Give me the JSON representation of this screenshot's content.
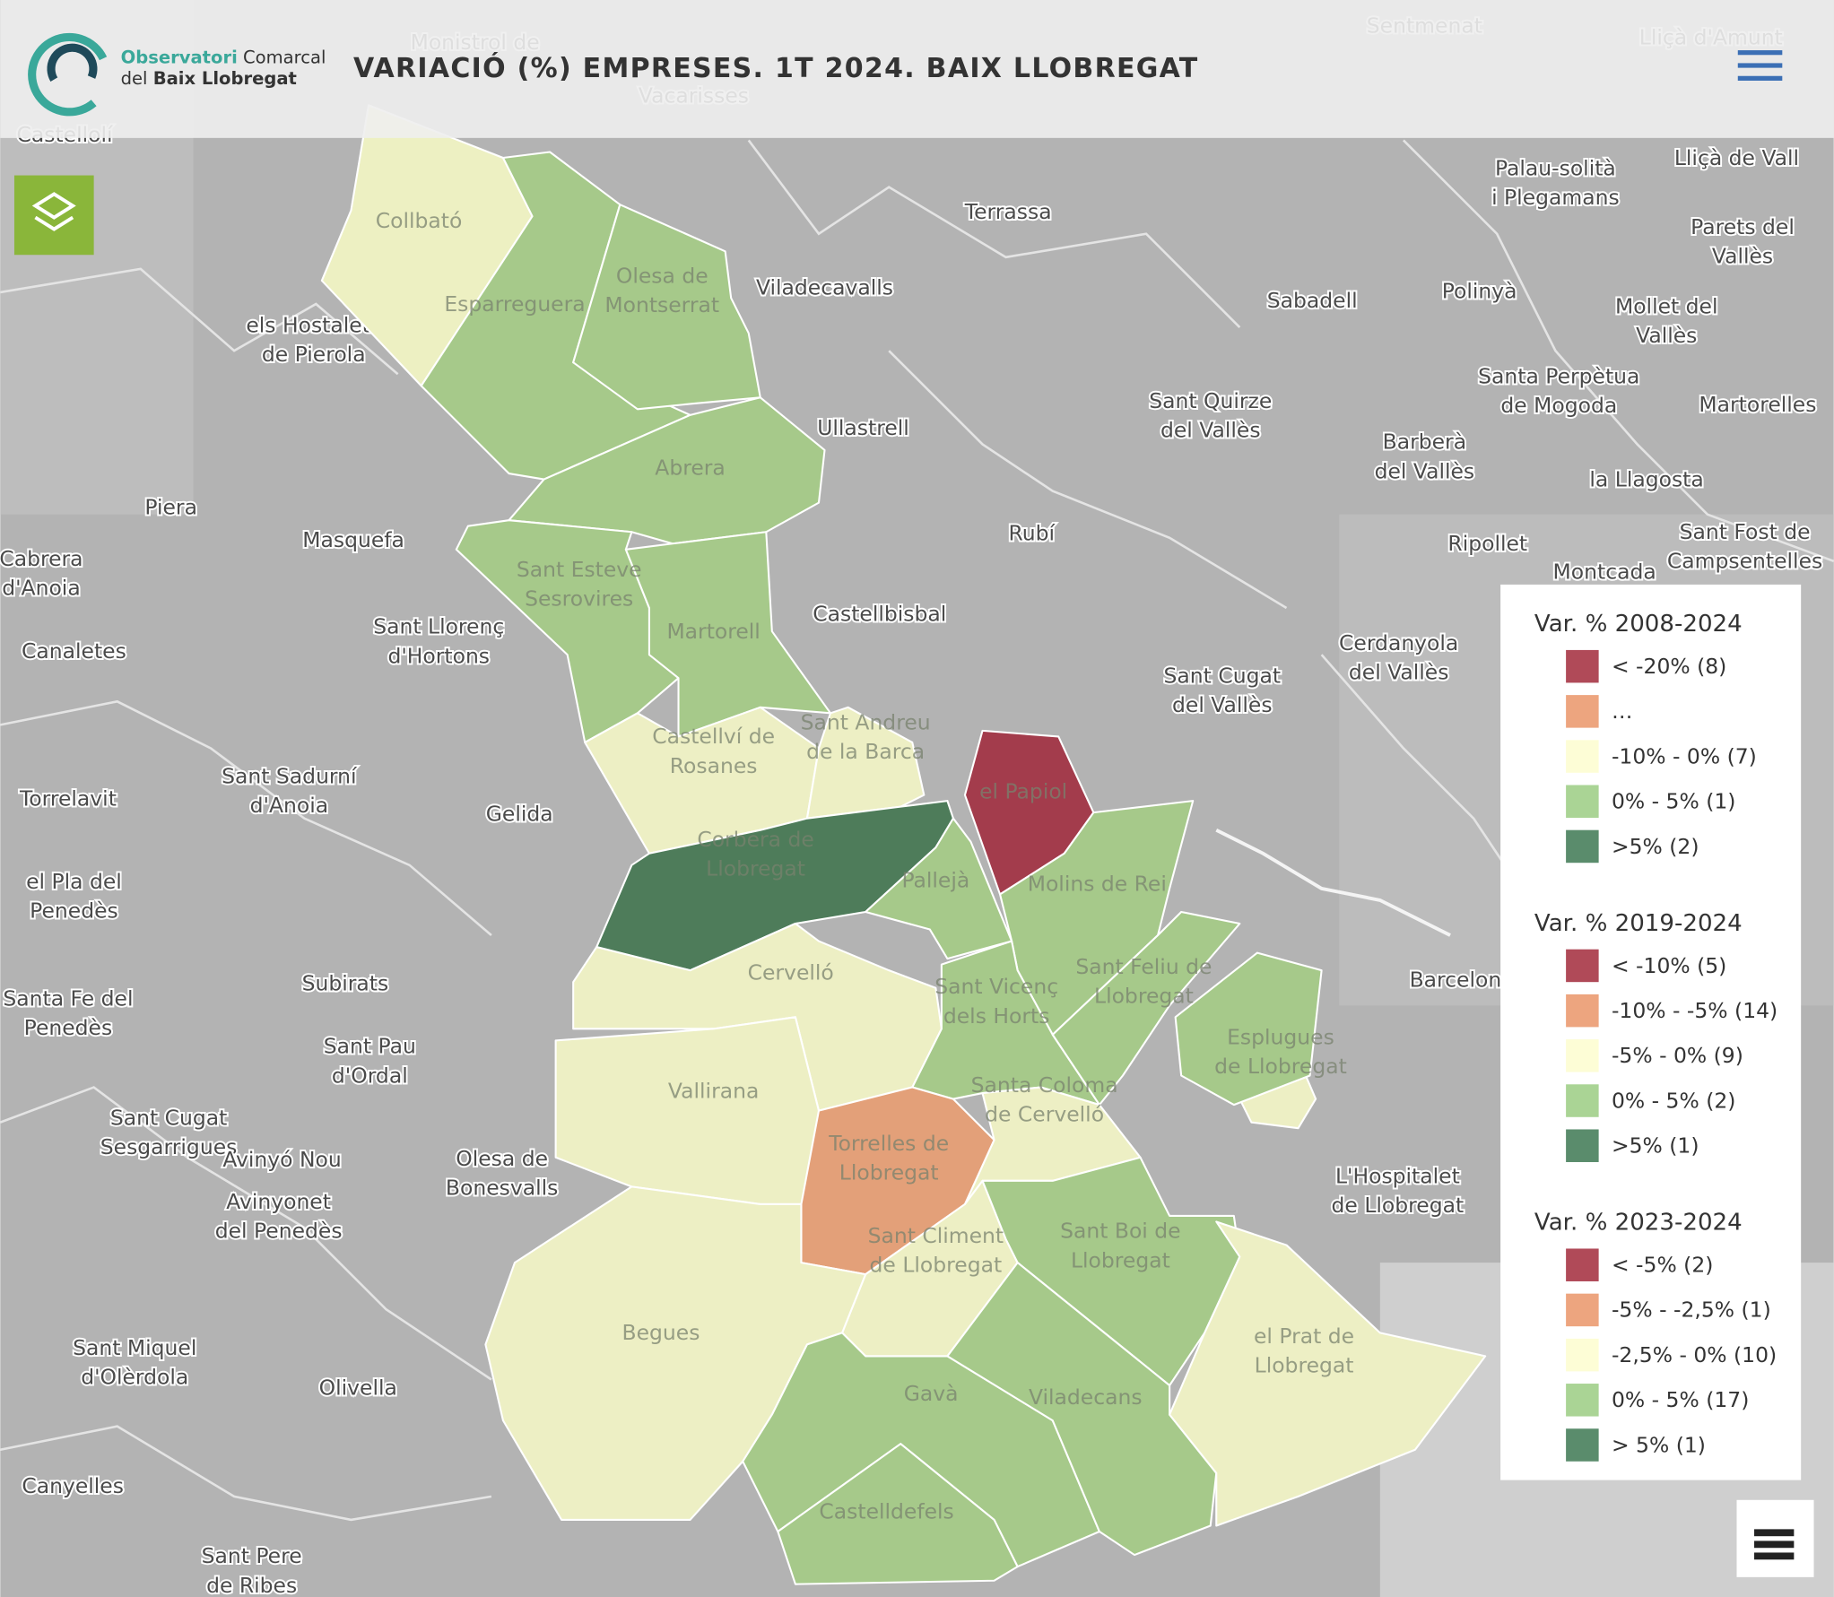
{
  "header": {
    "logo": {
      "line1": [
        "Observatori",
        "Comarcal"
      ],
      "line2": [
        "del",
        "Baix Llobregat"
      ]
    },
    "title": "VARIACIÓ (%) EMPRESES. 1T 2024. BAIX LLOBREGAT"
  },
  "municipalities": [
    {
      "name": [
        "Collbató"
      ],
      "color": "#edf0c2"
    },
    {
      "name": [
        "Esparreguera"
      ],
      "color": "#a6c98a"
    },
    {
      "name": [
        "Olesa de",
        "Montserrat"
      ],
      "color": "#a6c98a"
    },
    {
      "name": [
        "Abrera"
      ],
      "color": "#a6c98a"
    },
    {
      "name": [
        "Sant Esteve",
        "Sesrovires"
      ],
      "color": "#a6c98a"
    },
    {
      "name": [
        "Martorell"
      ],
      "color": "#a6c98a"
    },
    {
      "name": [
        "Castellví de",
        "Rosanes"
      ],
      "color": "#edefc4"
    },
    {
      "name": [
        "Sant Andreu",
        "de la Barca"
      ],
      "color": "#edefc4"
    },
    {
      "name": [
        "Corbera de",
        "Llobregat"
      ],
      "color": "#4e7c5a"
    },
    {
      "name": [
        "el Papiol"
      ],
      "color": "#a33c4c"
    },
    {
      "name": [
        "Pallejà"
      ],
      "color": "#a6c98a"
    },
    {
      "name": [
        "Molins de Rei"
      ],
      "color": "#a6c98a"
    },
    {
      "name": [
        "Cervelló"
      ],
      "color": "#edefc4"
    },
    {
      "name": [
        "Sant Vicenç",
        "dels Horts"
      ],
      "color": "#a6c98a"
    },
    {
      "name": [
        "Sant Feliu de",
        "Llobregat"
      ],
      "color": "#a6c98a"
    },
    {
      "name": [
        "Esplugues",
        "de Llobregat"
      ],
      "color": "#a6c98a"
    },
    {
      "name": [
        "Santa Coloma",
        "de Cervelló"
      ],
      "color": "#edefc4"
    },
    {
      "name": [
        "Vallirana"
      ],
      "color": "#edefc4"
    },
    {
      "name": [
        "Torrelles de",
        "Llobregat"
      ],
      "color": "#e3a079"
    },
    {
      "name": [
        "Sant Climent",
        "de Llobregat"
      ],
      "color": "#edefc4"
    },
    {
      "name": [
        "Sant Boi de",
        "Llobregat"
      ],
      "color": "#a6c98a"
    },
    {
      "name": [
        "Begues"
      ],
      "color": "#edefc4"
    },
    {
      "name": [
        "Gavà"
      ],
      "color": "#a6c98a"
    },
    {
      "name": [
        "Viladecans"
      ],
      "color": "#a6c98a"
    },
    {
      "name": [
        "el Prat de",
        "Llobregat"
      ],
      "color": "#edefc4"
    },
    {
      "name": [
        "Castelldefels"
      ],
      "color": "#a6c98a"
    }
  ],
  "places": [
    [
      "Terrassa"
    ],
    [
      "Viladecavalls"
    ],
    [
      "Sabadell"
    ],
    [
      "Polinyà"
    ],
    [
      "Palau-solità",
      "i Plegamans"
    ],
    [
      "Lliçà de Vall"
    ],
    [
      "Parets del",
      "Vallès"
    ],
    [
      "Mollet del",
      "Vallès"
    ],
    [
      "Santa Perpètua",
      "de Mogoda"
    ],
    [
      "Martorelles"
    ],
    [
      "Ullastrell"
    ],
    [
      "Sant Quirze",
      "del Vallès"
    ],
    [
      "Barberà",
      "del Vallès"
    ],
    [
      "la Llagosta"
    ],
    [
      "Rubí"
    ],
    [
      "Ripollet"
    ],
    [
      "Sant Fost de",
      "Campsentelles"
    ],
    [
      "Montcada"
    ],
    [
      "Castellbisbal"
    ],
    [
      "Cerdanyola",
      "del Vallès"
    ],
    [
      "Sant Cugat",
      "del Vallès"
    ],
    [
      "els Hostalets",
      "de Pierola"
    ],
    [
      "Masquefa"
    ],
    [
      "Sant Llorenç",
      "d'Hortons"
    ],
    [
      "Cabrera",
      "d'Anoia"
    ],
    [
      "Canaletes"
    ],
    [
      "Torrelavit"
    ],
    [
      "Sant Sadurní",
      "d'Anoia"
    ],
    [
      "Gelida"
    ],
    [
      "el Pla del",
      "Penedès"
    ],
    [
      "Subirats"
    ],
    [
      "Santa Fe del",
      "Penedès"
    ],
    [
      "Sant Pau",
      "d'Ordal"
    ],
    [
      "Sant Cugat",
      "Sesgarrigues"
    ],
    [
      "Avinyó Nou"
    ],
    [
      "Avinyonet",
      "del Penedès"
    ],
    [
      "Olesa de",
      "Bonesvalls"
    ],
    [
      "Sant Miquel",
      "d'Olèrdola"
    ],
    [
      "Olivella"
    ],
    [
      "Canyelles"
    ],
    [
      "Sant Pere",
      "de Ribes"
    ],
    [
      "Vacarisses"
    ],
    [
      "Sentmenat"
    ],
    [
      "Lliçà d'Amunt"
    ],
    [
      "Castellolí"
    ],
    [
      "Piera"
    ],
    [
      "Barcelona"
    ],
    [
      "L'Hospitalet",
      "de Llobregat"
    ],
    [
      "Monistrol de"
    ]
  ],
  "legend": [
    {
      "title": "Var. % 2008-2024",
      "items": [
        {
          "label": "< -20% (8)",
          "color": "#b04a58"
        },
        {
          "label": "…",
          "color": "#eda57f"
        },
        {
          "label": "-10% - 0% (7)",
          "color": "#fdfdd6"
        },
        {
          "label": "0% - 5% (1)",
          "color": "#aad495"
        },
        {
          "label": ">5% (2)",
          "color": "#5a8c6c"
        }
      ]
    },
    {
      "title": "Var. % 2019-2024",
      "items": [
        {
          "label": "< -10% (5)",
          "color": "#b04a58"
        },
        {
          "label": "-10% - -5% (14)",
          "color": "#eda57f"
        },
        {
          "label": "-5% - 0% (9)",
          "color": "#fdfdd6"
        },
        {
          "label": "0% - 5% (2)",
          "color": "#aad495"
        },
        {
          "label": ">5% (1)",
          "color": "#5a8c6c"
        }
      ]
    },
    {
      "title": "Var. % 2023-2024",
      "items": [
        {
          "label": "< -5% (2)",
          "color": "#b04a58"
        },
        {
          "label": "-5% - -2,5% (1)",
          "color": "#eda57f"
        },
        {
          "label": "-2,5% - 0% (10)",
          "color": "#fdfdd6"
        },
        {
          "label": "0% - 5% (17)",
          "color": "#aad495"
        },
        {
          "label": "> 5% (1)",
          "color": "#5a8c6c"
        }
      ]
    }
  ]
}
